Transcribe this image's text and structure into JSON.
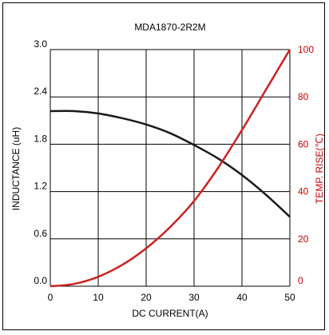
{
  "chart_data": {
    "type": "line",
    "title": "MDA1870-2R2M",
    "xlabel": "DC CURRENT(A)",
    "ylabel_left": "INDUCTANCE (uH)",
    "ylabel_right": "TEMP. RISE(℃)",
    "xlim": [
      0,
      50
    ],
    "ylim_left": [
      0,
      3.0
    ],
    "ylim_right": [
      0,
      100
    ],
    "grid": true,
    "x_ticks": [
      "0",
      "10",
      "20",
      "30",
      "40",
      "50"
    ],
    "y_left_ticks": [
      "0.0",
      "0.6",
      "1.2",
      "1.8",
      "2.4",
      "3.0"
    ],
    "y_right_ticks": [
      "0",
      "20",
      "40",
      "60",
      "80",
      "100"
    ],
    "colors": {
      "left_axis": "#000000",
      "right_axis": "#cc0000",
      "inductance_line": "#1a1a1a",
      "temp_line": "#cc2222"
    },
    "series": [
      {
        "axis": "left",
        "x": [
          0,
          5,
          10,
          15,
          20,
          25,
          30,
          35,
          40,
          45,
          50
        ],
        "values": [
          2.22,
          2.22,
          2.19,
          2.13,
          2.05,
          1.94,
          1.79,
          1.62,
          1.41,
          1.16,
          0.88
        ]
      },
      {
        "axis": "right",
        "x": [
          0,
          5,
          10,
          15,
          20,
          25,
          30,
          35,
          40,
          45,
          50
        ],
        "values": [
          0,
          1,
          4,
          9,
          16,
          25,
          36,
          50,
          66,
          83,
          100
        ]
      }
    ]
  }
}
